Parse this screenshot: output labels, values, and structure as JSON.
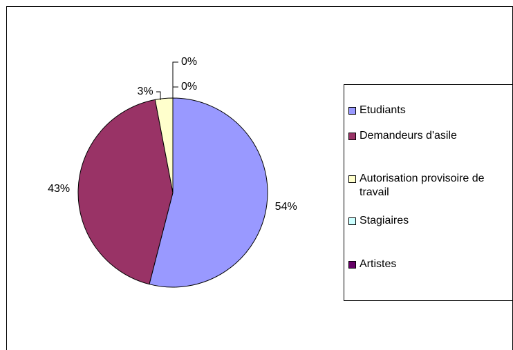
{
  "chart_data": {
    "type": "pie",
    "categories": [
      "Etudiants",
      "Demandeurs d'asile",
      "Autorisation provisoire de travail",
      "Stagiaires",
      "Artistes"
    ],
    "values": [
      54,
      43,
      3,
      0,
      0
    ],
    "value_labels": [
      "54%",
      "43%",
      "3%",
      "0%",
      "0%"
    ],
    "colors": [
      "#9999ff",
      "#993366",
      "#ffffcc",
      "#ccffff",
      "#660066"
    ],
    "legend": "right"
  }
}
